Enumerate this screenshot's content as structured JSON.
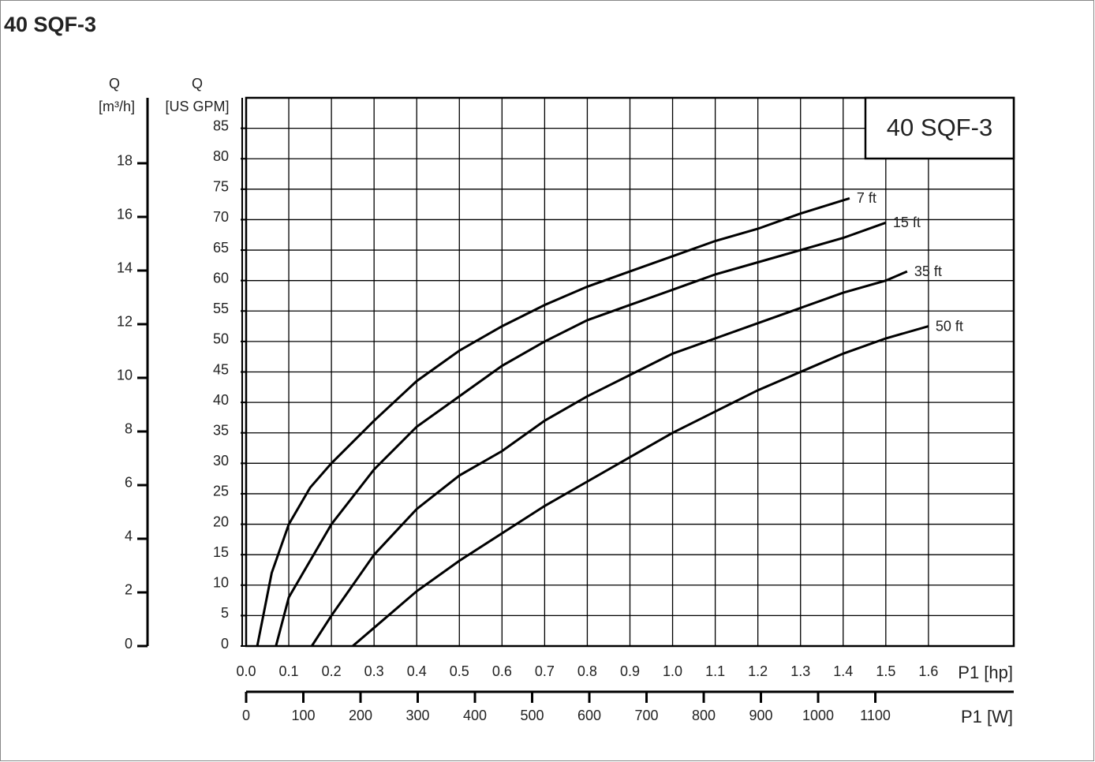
{
  "chart_data": {
    "type": "line",
    "title": "40 SQF-3",
    "box_label": "40 SQF-3",
    "xlabel": "P1 [hp]",
    "ylabel": "Q",
    "yunit": "[US GPM]",
    "y2label": "Q",
    "y2unit": "[m³/h]",
    "x2label": "P1 [W]",
    "xlim": [
      0,
      1.8
    ],
    "xticks": [
      {
        "value": 0,
        "label": "0.0"
      },
      0.1,
      0.2,
      0.3,
      0.4,
      0.5,
      0.6,
      0.7,
      0.8,
      0.9,
      {
        "value": 1,
        "label": "1.0"
      },
      1.1,
      1.2,
      1.3,
      1.4,
      1.5,
      1.6
    ],
    "x2lim": [
      0,
      1342
    ],
    "x2ticks": [
      0,
      100,
      200,
      300,
      400,
      500,
      600,
      700,
      800,
      900,
      1000,
      1100
    ],
    "ylim": [
      0,
      90
    ],
    "yticks": [
      0,
      5,
      10,
      15,
      20,
      25,
      30,
      35,
      40,
      45,
      50,
      55,
      60,
      65,
      70,
      75,
      80,
      85
    ],
    "y2lim": [
      0,
      20.44
    ],
    "y2ticks": [
      0,
      2,
      4,
      6,
      8,
      10,
      12,
      14,
      16,
      18
    ],
    "grid": true,
    "series": [
      {
        "name": "7 ft",
        "color": "#000000",
        "x": [
          0.026,
          0.06,
          0.1,
          0.15,
          0.2,
          0.3,
          0.4,
          0.5,
          0.6,
          0.7,
          0.8,
          0.9,
          1.0,
          1.1,
          1.2,
          1.3,
          1.415
        ],
        "values": [
          0,
          12,
          20,
          26,
          30,
          37,
          43.5,
          48.5,
          52.5,
          56,
          59,
          61.5,
          64,
          66.5,
          68.5,
          71,
          73.5
        ]
      },
      {
        "name": "15 ft",
        "color": "#000000",
        "x": [
          0.07,
          0.1,
          0.2,
          0.3,
          0.4,
          0.5,
          0.6,
          0.7,
          0.8,
          0.9,
          1.0,
          1.1,
          1.2,
          1.3,
          1.4,
          1.5
        ],
        "values": [
          0,
          8,
          20,
          29,
          36,
          41,
          46,
          50,
          53.5,
          56,
          58.5,
          61,
          63,
          65,
          67,
          69.5
        ]
      },
      {
        "name": "35 ft",
        "color": "#000000",
        "x": [
          0.154,
          0.2,
          0.3,
          0.4,
          0.5,
          0.6,
          0.7,
          0.8,
          0.9,
          1.0,
          1.1,
          1.2,
          1.3,
          1.4,
          1.5,
          1.55
        ],
        "values": [
          0,
          5,
          15,
          22.5,
          28,
          32,
          37,
          41,
          44.5,
          48,
          50.5,
          53,
          55.5,
          58,
          60,
          61.5
        ]
      },
      {
        "name": "50 ft",
        "color": "#000000",
        "x": [
          0.25,
          0.3,
          0.4,
          0.5,
          0.6,
          0.7,
          0.8,
          0.9,
          1.0,
          1.1,
          1.2,
          1.3,
          1.4,
          1.5,
          1.6
        ],
        "values": [
          0,
          3,
          9,
          14,
          18.5,
          23,
          27,
          31,
          35,
          38.5,
          42,
          45,
          48,
          50.5,
          52.5
        ]
      }
    ]
  }
}
